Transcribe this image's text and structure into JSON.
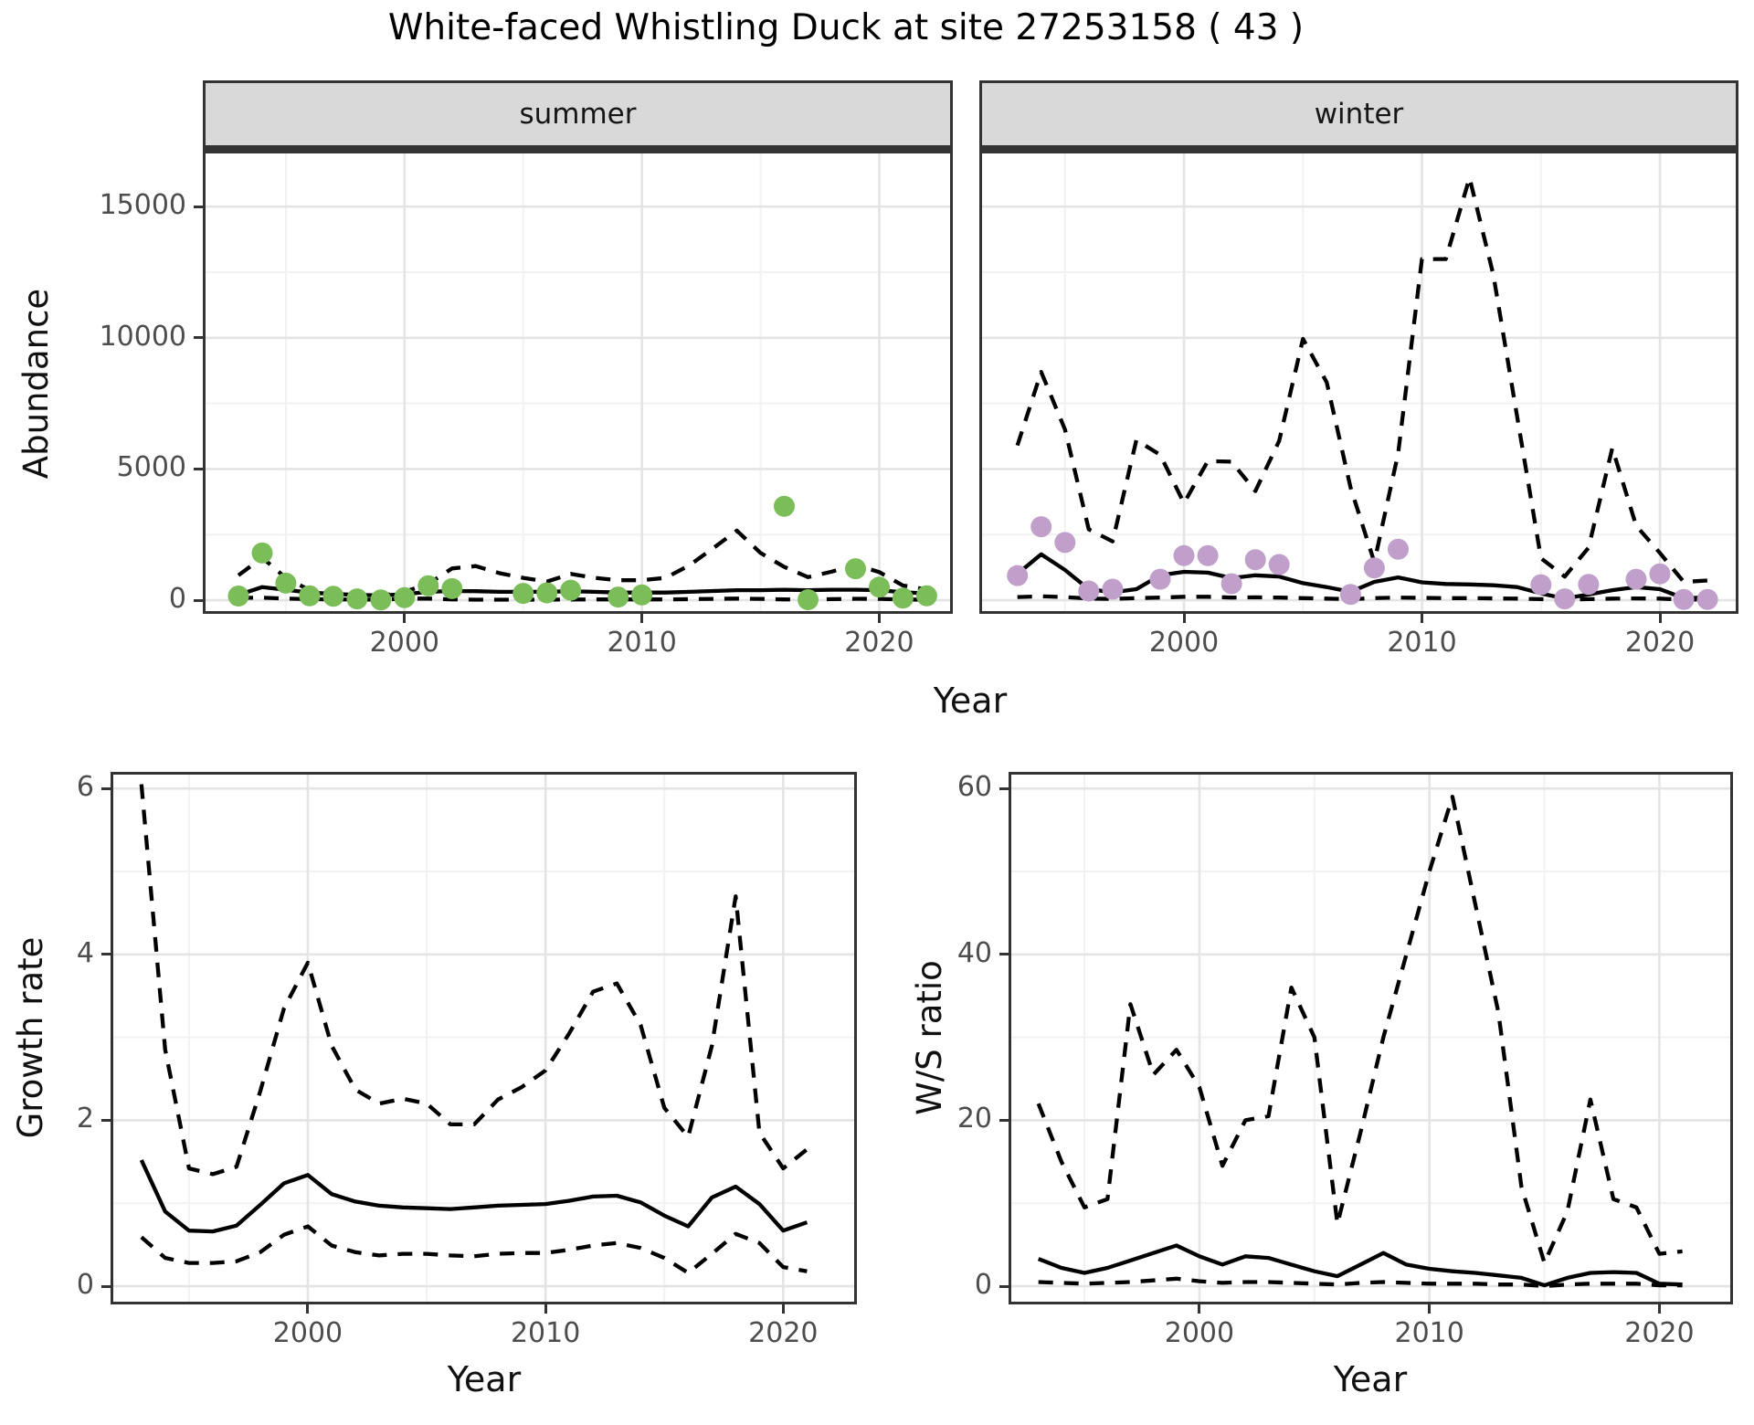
{
  "title": "White-faced Whistling Duck at site 27253158 ( 43 )",
  "top_row": {
    "y_axis_title": "Abundance",
    "x_axis_title": "Year",
    "facet_labels": [
      "summer",
      "winter"
    ]
  },
  "bottom_row": {
    "left": {
      "y_axis_title": "Growth rate",
      "x_axis_title": "Year"
    },
    "right": {
      "y_axis_title": "W/S ratio",
      "x_axis_title": "Year"
    }
  },
  "colors": {
    "summer_point": "#7abd59",
    "winter_point": "#c09fca",
    "line": "#000000",
    "grid_major": "#e4e4e4",
    "grid_minor": "#f2f2f2",
    "panel_border": "#333333",
    "strip_bg": "#d9d9d9",
    "axis_text": "#4d4d4d"
  },
  "chart_data": [
    {
      "id": "summer",
      "type": "line",
      "facet": "summer",
      "x_domain": [
        1991.5,
        2023.1
      ],
      "y_domain": [
        -520,
        17130
      ],
      "x_ticks_major": [
        2000,
        2010,
        2020
      ],
      "x_tick_labels": [
        "2000",
        "2010",
        "2020"
      ],
      "x_ticks_minor": [
        1995,
        2005,
        2015
      ],
      "y_ticks_major": [
        0,
        5000,
        10000,
        15000
      ],
      "y_tick_labels": [
        "0",
        "5000",
        "10000",
        "15000"
      ],
      "y_ticks_minor": [
        2500,
        7500,
        12500
      ],
      "series": {
        "upper_ci": {
          "style": "dashed",
          "years": [
            1993,
            1994,
            1995,
            1996,
            1997,
            1998,
            1999,
            2000,
            2001,
            2002,
            2003,
            2004,
            2005,
            2006,
            2007,
            2008,
            2009,
            2010,
            2011,
            2012,
            2013,
            2014,
            2015,
            2016,
            2017,
            2018,
            2019,
            2020,
            2021,
            2022
          ],
          "values": [
            950,
            1620,
            850,
            380,
            260,
            200,
            170,
            320,
            620,
            1210,
            1300,
            1030,
            850,
            710,
            1000,
            850,
            760,
            760,
            850,
            1330,
            1980,
            2650,
            1800,
            1270,
            880,
            1090,
            1350,
            1070,
            560,
            410
          ]
        },
        "median": {
          "style": "solid",
          "years": [
            1993,
            1994,
            1995,
            1996,
            1997,
            1998,
            1999,
            2000,
            2001,
            2002,
            2003,
            2004,
            2005,
            2006,
            2007,
            2008,
            2009,
            2010,
            2011,
            2012,
            2013,
            2014,
            2015,
            2016,
            2017,
            2018,
            2019,
            2020,
            2021,
            2022
          ],
          "values": [
            200,
            500,
            400,
            290,
            240,
            200,
            180,
            230,
            320,
            350,
            345,
            320,
            320,
            320,
            345,
            320,
            290,
            290,
            290,
            320,
            350,
            380,
            380,
            400,
            380,
            400,
            400,
            380,
            300,
            260
          ]
        },
        "lower_ci": {
          "style": "dashed",
          "years": [
            1993,
            1994,
            1995,
            1996,
            1997,
            1998,
            1999,
            2000,
            2001,
            2002,
            2003,
            2004,
            2005,
            2006,
            2007,
            2008,
            2009,
            2010,
            2011,
            2012,
            2013,
            2014,
            2015,
            2016,
            2017,
            2018,
            2019,
            2020,
            2021,
            2022
          ],
          "values": [
            90,
            95,
            60,
            40,
            30,
            25,
            20,
            60,
            60,
            30,
            20,
            20,
            20,
            20,
            25,
            30,
            30,
            30,
            30,
            40,
            50,
            60,
            50,
            30,
            25,
            40,
            55,
            50,
            25,
            20
          ]
        }
      },
      "points": {
        "color_key": "summer_point",
        "years": [
          1993,
          1994,
          1995,
          1996,
          1997,
          1998,
          1999,
          2000,
          2001,
          2002,
          2005,
          2006,
          2007,
          2009,
          2010,
          2016,
          2017,
          2019,
          2020,
          2021,
          2022
        ],
        "values": [
          160,
          1800,
          650,
          170,
          150,
          50,
          10,
          100,
          550,
          440,
          260,
          280,
          380,
          120,
          200,
          3580,
          20,
          1200,
          500,
          80,
          170
        ]
      }
    },
    {
      "id": "winter",
      "type": "line",
      "facet": "winter",
      "x_domain": [
        1991.4,
        2023.3
      ],
      "y_domain": [
        -520,
        17130
      ],
      "x_ticks_major": [
        2000,
        2010,
        2020
      ],
      "x_tick_labels": [
        "2000",
        "2010",
        "2020"
      ],
      "x_ticks_minor": [
        1995,
        2005,
        2015
      ],
      "y_ticks_major": [
        0,
        5000,
        10000,
        15000
      ],
      "y_tick_labels": [
        "0",
        "5000",
        "10000",
        "15000"
      ],
      "y_ticks_minor": [
        2500,
        7500,
        12500
      ],
      "series": {
        "upper_ci": {
          "style": "dashed",
          "years": [
            1993,
            1994,
            1995,
            1996,
            1997,
            1998,
            1999,
            2000,
            2001,
            2002,
            2003,
            2004,
            2005,
            2006,
            2007,
            2008,
            2009,
            2010,
            2011,
            2012,
            2013,
            2014,
            2015,
            2016,
            2017,
            2018,
            2019,
            2020,
            2021,
            2022
          ],
          "values": [
            5900,
            8700,
            6500,
            2700,
            2240,
            6100,
            5540,
            3700,
            5300,
            5280,
            4160,
            6070,
            9960,
            8300,
            4290,
            1450,
            5600,
            13000,
            13000,
            16100,
            12400,
            7000,
            1600,
            900,
            2000,
            5800,
            2840,
            1800,
            700,
            750
          ]
        },
        "median": {
          "style": "solid",
          "years": [
            1993,
            1994,
            1995,
            1996,
            1997,
            1998,
            1999,
            2000,
            2001,
            2002,
            2003,
            2004,
            2005,
            2006,
            2007,
            2008,
            2009,
            2010,
            2011,
            2012,
            2013,
            2014,
            2015,
            2016,
            2017,
            2018,
            2019,
            2020,
            2021,
            2022
          ],
          "values": [
            1000,
            1750,
            1150,
            420,
            300,
            420,
            950,
            1080,
            1050,
            840,
            950,
            900,
            650,
            500,
            320,
            700,
            870,
            680,
            620,
            600,
            570,
            500,
            260,
            60,
            220,
            380,
            500,
            420,
            80,
            100
          ]
        },
        "lower_ci": {
          "style": "dashed",
          "years": [
            1993,
            1994,
            1995,
            1996,
            1997,
            1998,
            1999,
            2000,
            2001,
            2002,
            2003,
            2004,
            2005,
            2006,
            2007,
            2008,
            2009,
            2010,
            2011,
            2012,
            2013,
            2014,
            2015,
            2016,
            2017,
            2018,
            2019,
            2020,
            2021,
            2022
          ],
          "values": [
            120,
            150,
            120,
            60,
            50,
            80,
            100,
            130,
            130,
            100,
            110,
            100,
            80,
            60,
            40,
            80,
            100,
            90,
            80,
            80,
            70,
            60,
            40,
            20,
            40,
            60,
            70,
            60,
            20,
            30
          ]
        }
      },
      "points": {
        "color_key": "winter_point",
        "years": [
          1993,
          1994,
          1995,
          1996,
          1997,
          1999,
          2000,
          2001,
          2002,
          2003,
          2004,
          2007,
          2008,
          2009,
          2015,
          2016,
          2017,
          2019,
          2020,
          2021,
          2022
        ],
        "values": [
          940,
          2800,
          2200,
          350,
          420,
          800,
          1700,
          1700,
          630,
          1540,
          1360,
          220,
          1230,
          1940,
          590,
          50,
          600,
          800,
          1000,
          30,
          30
        ]
      }
    },
    {
      "id": "growth",
      "type": "line",
      "x_domain": [
        1991.7,
        2023.1
      ],
      "y_domain": [
        -0.22,
        6.2
      ],
      "x_ticks_major": [
        2000,
        2010,
        2020
      ],
      "x_tick_labels": [
        "2000",
        "2010",
        "2020"
      ],
      "x_ticks_minor": [
        1995,
        2005,
        2015
      ],
      "y_ticks_major": [
        0,
        2,
        4,
        6
      ],
      "y_tick_labels": [
        "0",
        "2",
        "4",
        "6"
      ],
      "y_ticks_minor": [
        1,
        3,
        5
      ],
      "series": {
        "upper_ci": {
          "style": "dashed",
          "years": [
            1993,
            1994,
            1995,
            1996,
            1997,
            1998,
            1999,
            2000,
            2001,
            2002,
            2003,
            2004,
            2005,
            2006,
            2007,
            2008,
            2009,
            2010,
            2011,
            2012,
            2013,
            2014,
            2015,
            2016,
            2017,
            2018,
            2019,
            2020,
            2021
          ],
          "values": [
            6.05,
            2.85,
            1.42,
            1.35,
            1.44,
            2.35,
            3.35,
            3.9,
            2.9,
            2.37,
            2.2,
            2.26,
            2.2,
            1.95,
            1.95,
            2.25,
            2.4,
            2.6,
            3.05,
            3.55,
            3.65,
            3.15,
            2.15,
            1.8,
            2.9,
            4.7,
            1.85,
            1.42,
            1.65
          ]
        },
        "median": {
          "style": "solid",
          "years": [
            1993,
            1994,
            1995,
            1996,
            1997,
            1998,
            1999,
            2000,
            2001,
            2002,
            2003,
            2004,
            2005,
            2006,
            2007,
            2008,
            2009,
            2010,
            2011,
            2012,
            2013,
            2014,
            2015,
            2016,
            2017,
            2018,
            2019,
            2020,
            2021
          ],
          "values": [
            1.52,
            0.9,
            0.67,
            0.66,
            0.73,
            0.98,
            1.24,
            1.34,
            1.11,
            1.02,
            0.97,
            0.95,
            0.94,
            0.93,
            0.95,
            0.97,
            0.98,
            0.99,
            1.03,
            1.08,
            1.09,
            1.01,
            0.85,
            0.72,
            1.07,
            1.2,
            0.99,
            0.67,
            0.77
          ]
        },
        "lower_ci": {
          "style": "dashed",
          "years": [
            1993,
            1994,
            1995,
            1996,
            1997,
            1998,
            1999,
            2000,
            2001,
            2002,
            2003,
            2004,
            2005,
            2006,
            2007,
            2008,
            2009,
            2010,
            2011,
            2012,
            2013,
            2014,
            2015,
            2016,
            2017,
            2018,
            2019,
            2020,
            2021
          ],
          "values": [
            0.59,
            0.34,
            0.28,
            0.28,
            0.3,
            0.41,
            0.62,
            0.72,
            0.49,
            0.41,
            0.37,
            0.39,
            0.39,
            0.37,
            0.36,
            0.39,
            0.4,
            0.4,
            0.44,
            0.49,
            0.52,
            0.46,
            0.34,
            0.16,
            0.39,
            0.63,
            0.52,
            0.23,
            0.18
          ]
        }
      },
      "points": null
    },
    {
      "id": "ws",
      "type": "line",
      "x_domain": [
        1991.7,
        2023.2
      ],
      "y_domain": [
        -2.2,
        62
      ],
      "x_ticks_major": [
        2000,
        2010,
        2020
      ],
      "x_tick_labels": [
        "2000",
        "2010",
        "2020"
      ],
      "x_ticks_minor": [
        1995,
        2005,
        2015
      ],
      "y_ticks_major": [
        0,
        20,
        40,
        60
      ],
      "y_tick_labels": [
        "0",
        "20",
        "40",
        "60"
      ],
      "y_ticks_minor": [
        10,
        30,
        50
      ],
      "series": {
        "upper_ci": {
          "style": "dashed",
          "years": [
            1993,
            1994,
            1995,
            1996,
            1997,
            1998,
            1999,
            2000,
            2001,
            2002,
            2003,
            2004,
            2005,
            2006,
            2007,
            2008,
            2009,
            2010,
            2011,
            2012,
            2013,
            2014,
            2015,
            2016,
            2017,
            2018,
            2019,
            2020,
            2021
          ],
          "values": [
            22,
            15,
            9.5,
            10.5,
            34,
            25.5,
            28.5,
            24,
            14.5,
            20,
            20.5,
            36,
            30,
            7.5,
            18.5,
            30,
            40,
            50,
            59,
            46,
            33,
            12,
            2.8,
            9,
            22.5,
            10.5,
            9.5,
            3.9,
            4.2
          ]
        },
        "median": {
          "style": "solid",
          "years": [
            1993,
            1994,
            1995,
            1996,
            1997,
            1998,
            1999,
            2000,
            2001,
            2002,
            2003,
            2004,
            2005,
            2006,
            2007,
            2008,
            2009,
            2010,
            2011,
            2012,
            2013,
            2014,
            2015,
            2016,
            2017,
            2018,
            2019,
            2020,
            2021
          ],
          "values": [
            3.3,
            2.2,
            1.6,
            2.2,
            3.1,
            4.0,
            4.9,
            3.6,
            2.6,
            3.6,
            3.4,
            2.6,
            1.8,
            1.2,
            2.6,
            4.0,
            2.6,
            2.1,
            1.8,
            1.6,
            1.3,
            1.0,
            0.1,
            1.0,
            1.6,
            1.7,
            1.6,
            0.3,
            0.2
          ]
        },
        "lower_ci": {
          "style": "dashed",
          "years": [
            1993,
            1994,
            1995,
            1996,
            1997,
            1998,
            1999,
            2000,
            2001,
            2002,
            2003,
            2004,
            2005,
            2006,
            2007,
            2008,
            2009,
            2010,
            2011,
            2012,
            2013,
            2014,
            2015,
            2016,
            2017,
            2018,
            2019,
            2020,
            2021
          ],
          "values": [
            0.5,
            0.4,
            0.3,
            0.4,
            0.5,
            0.7,
            0.9,
            0.6,
            0.4,
            0.5,
            0.5,
            0.4,
            0.3,
            0.2,
            0.4,
            0.5,
            0.4,
            0.3,
            0.3,
            0.3,
            0.2,
            0.2,
            0.0,
            0.2,
            0.3,
            0.3,
            0.3,
            0.1,
            0.1
          ]
        }
      },
      "points": null
    }
  ]
}
